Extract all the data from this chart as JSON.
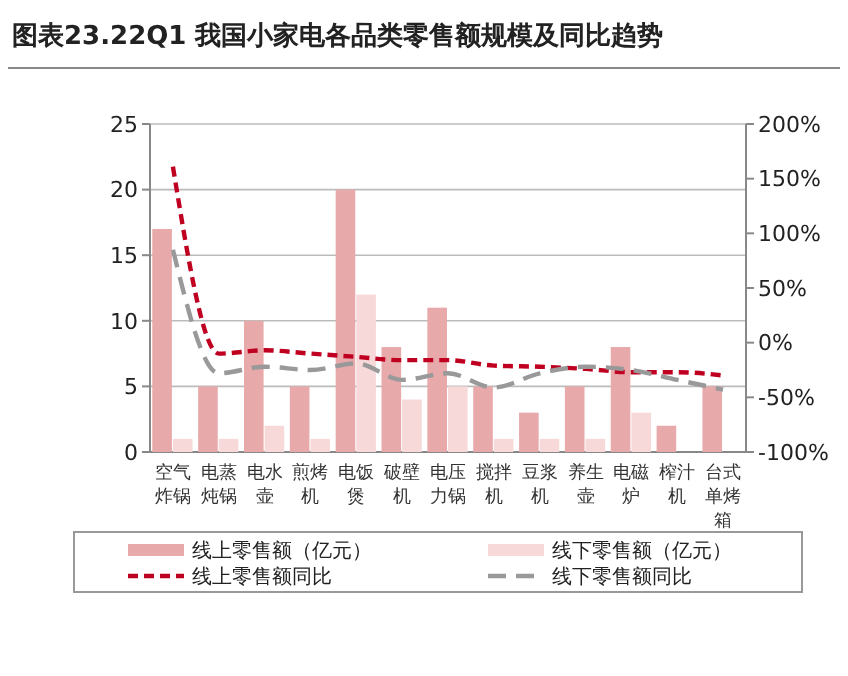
{
  "chart_data": {
    "type": "bar",
    "title": "图表23.22Q1 我国小家电各品类零售额规模及同比趋势",
    "categories": [
      "空气炸锅",
      "电蒸炖锅",
      "电水壶",
      "煎烤机",
      "电饭煲",
      "破壁机",
      "电压力锅",
      "搅拌机",
      "豆浆机",
      "养生壶",
      "电磁炉",
      "榨汁机",
      "台式单烤箱"
    ],
    "series": [
      {
        "name": "线上零售额（亿元）",
        "color": "#e8a9aa",
        "values": [
          17,
          5,
          10,
          5,
          20,
          8,
          11,
          5,
          3,
          5,
          8,
          2,
          5
        ]
      },
      {
        "name": "线下零售额（亿元）",
        "color": "#f8d9da",
        "values": [
          1,
          1,
          2,
          1,
          12,
          4,
          5,
          1,
          1,
          1,
          3,
          null,
          null
        ]
      },
      {
        "name": "线上零售额同比",
        "type": "line",
        "axis": "y2",
        "color": "#c00020",
        "line_style": "dashed",
        "values": [
          161,
          -10,
          -7,
          -10,
          -13,
          -16,
          -16,
          -21,
          -22,
          -24,
          -27,
          -27,
          -30
        ]
      },
      {
        "name": "线下零售额同比",
        "type": "line",
        "axis": "y2",
        "color": "#999999",
        "line_style": "dashed",
        "values": [
          85,
          -28,
          -22,
          -25,
          -19,
          -34,
          -28,
          -41,
          -28,
          -22,
          -25,
          -34,
          -43
        ]
      }
    ],
    "ylim": [
      0,
      25
    ],
    "yticks": [
      0,
      5,
      10,
      15,
      20,
      25
    ],
    "y2lim": [
      -100,
      200
    ],
    "y2ticks": [
      {
        "value": -100,
        "label": "-100%"
      },
      {
        "value": -50,
        "label": "-50%"
      },
      {
        "value": 0,
        "label": "0%"
      },
      {
        "value": 50,
        "label": "50%"
      },
      {
        "value": 100,
        "label": "100%"
      },
      {
        "value": 150,
        "label": "150%"
      },
      {
        "value": 200,
        "label": "200%"
      }
    ],
    "grid": "y",
    "legend": "bottom",
    "marker": "none"
  }
}
